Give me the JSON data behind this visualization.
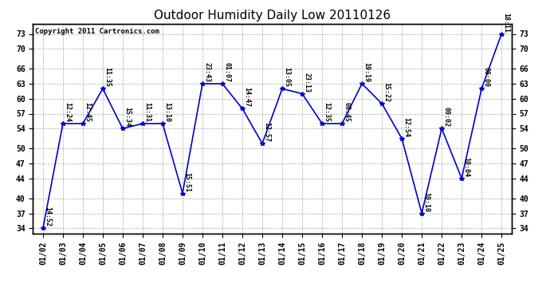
{
  "title": "Outdoor Humidity Daily Low 20110126",
  "copyright": "Copyright 2011 Cartronics.com",
  "x_labels": [
    "01/02",
    "01/03",
    "01/04",
    "01/05",
    "01/06",
    "01/07",
    "01/08",
    "01/09",
    "01/10",
    "01/11",
    "01/12",
    "01/13",
    "01/14",
    "01/15",
    "01/16",
    "01/17",
    "01/18",
    "01/19",
    "01/20",
    "01/21",
    "01/22",
    "01/23",
    "01/24",
    "01/25"
  ],
  "y_values": [
    34,
    55,
    55,
    62,
    54,
    55,
    55,
    41,
    63,
    63,
    58,
    51,
    62,
    61,
    55,
    55,
    63,
    59,
    52,
    37,
    54,
    44,
    62,
    73
  ],
  "time_labels": [
    "14:52",
    "12:24",
    "12:45",
    "11:35",
    "15:34",
    "11:31",
    "13:10",
    "15:51",
    "23:43",
    "01:07",
    "14:47",
    "12:57",
    "13:05",
    "23:13",
    "12:35",
    "00:45",
    "19:19",
    "15:22",
    "12:54",
    "10:10",
    "00:02",
    "10:04",
    "06:00",
    "18:11"
  ],
  "line_color": "#0000cc",
  "marker_color": "#0000cc",
  "bg_color": "#ffffff",
  "grid_color": "#aaaaaa",
  "title_fontsize": 11,
  "label_fontsize": 6.0,
  "tick_fontsize": 7,
  "ylim": [
    33,
    75
  ],
  "yticks": [
    34,
    37,
    40,
    44,
    47,
    50,
    54,
    57,
    60,
    63,
    66,
    70,
    73
  ],
  "copyright_fontsize": 6.5
}
